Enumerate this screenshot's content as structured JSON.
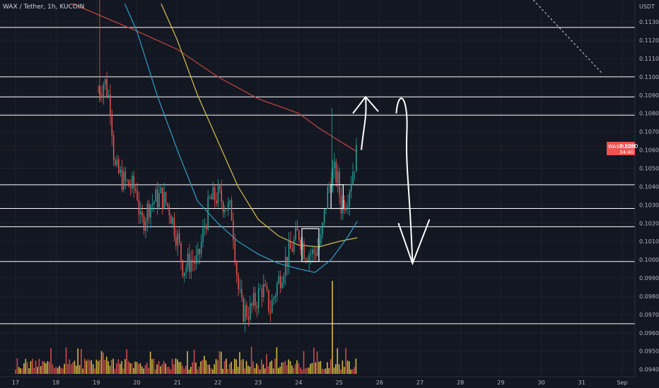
{
  "header": {
    "symbol_title": "WAX / Tether, 1h, KUCOIN"
  },
  "price_axis": {
    "unit": "USDT",
    "ticks": [
      "0.1130",
      "0.1120",
      "0.1110",
      "0.1100",
      "0.1090",
      "0.1080",
      "0.1070",
      "0.1060",
      "0.1050",
      "0.1040",
      "0.1030",
      "0.1020",
      "0.1010",
      "0.1000",
      "0.0990",
      "0.0980",
      "0.0970",
      "0.0960",
      "0.0950",
      "0.0940"
    ]
  },
  "time_axis": {
    "ticks": [
      "17",
      "18",
      "19",
      "20",
      "21",
      "22",
      "23",
      "24",
      "25",
      "26",
      "27",
      "28",
      "29",
      "30",
      "31",
      "Sep"
    ]
  },
  "badge": {
    "ticker": "WAXPUSDT",
    "price": "0.1060",
    "countdown": "34:40"
  },
  "colors": {
    "background": "#131722",
    "up": "#26a69a",
    "down": "#ef5350",
    "volume_up": "#f5d442",
    "volume_down": "#ef5350",
    "ma_red": "#c7463f",
    "ma_yellow": "#d8c24a",
    "ma_blue": "#2f9fc8",
    "drawing": "#ffffff",
    "axis_text": "#b2b5be"
  },
  "chart_data": {
    "type": "candlestick",
    "title": "WAX / Tether, 1h, KUCOIN",
    "ylabel": "USDT",
    "ylim": [
      0.0936,
      0.1142
    ],
    "x_dates": [
      "17",
      "18",
      "19",
      "20",
      "21",
      "22",
      "23",
      "24",
      "25",
      "26",
      "27",
      "28",
      "29",
      "30",
      "31",
      "Sep"
    ],
    "last_price": 0.106,
    "horizontal_levels": [
      0.1127,
      0.11,
      0.1089,
      0.1079,
      0.1041,
      0.1028,
      0.1018,
      0.0999,
      0.0965
    ],
    "boxes": [
      {
        "from_day": 24.08,
        "to_day": 24.5,
        "high": 0.1017,
        "low": 0.0999
      },
      {
        "from_day": 24.8,
        "to_day": 25.1,
        "high": 0.1041,
        "low": 0.1028
      }
    ],
    "arrows": [
      {
        "direction": "up",
        "from_price": 0.106,
        "to_price": 0.1089
      },
      {
        "direction": "down",
        "from_price": 0.1089,
        "to_price": 0.0998
      }
    ],
    "trend_line": {
      "from": [
        29.8,
        0.1142
      ],
      "to": [
        31.5,
        0.1102
      ],
      "style": "dashed"
    },
    "price_keypoints": [
      [
        19.05,
        0.1092
      ],
      [
        19.2,
        0.1098
      ],
      [
        19.35,
        0.1085
      ],
      [
        19.45,
        0.105
      ],
      [
        19.7,
        0.1042
      ],
      [
        20.0,
        0.1038
      ],
      [
        20.1,
        0.1018
      ],
      [
        20.3,
        0.103
      ],
      [
        20.6,
        0.1035
      ],
      [
        20.8,
        0.1028
      ],
      [
        21.0,
        0.1012
      ],
      [
        21.15,
        0.0995
      ],
      [
        21.35,
        0.1
      ],
      [
        21.5,
        0.0998
      ],
      [
        21.6,
        0.101
      ],
      [
        21.8,
        0.1032
      ],
      [
        22.0,
        0.1035
      ],
      [
        22.2,
        0.103
      ],
      [
        22.35,
        0.1025
      ],
      [
        22.5,
        0.0985
      ],
      [
        22.6,
        0.0972
      ],
      [
        22.8,
        0.0972
      ],
      [
        22.95,
        0.0978
      ],
      [
        23.1,
        0.0985
      ],
      [
        23.3,
        0.0973
      ],
      [
        23.45,
        0.0985
      ],
      [
        23.65,
        0.0998
      ],
      [
        23.8,
        0.1005
      ],
      [
        24.0,
        0.1015
      ],
      [
        24.15,
        0.1005
      ],
      [
        24.35,
        0.1003
      ],
      [
        24.55,
        0.101
      ],
      [
        24.7,
        0.1035
      ],
      [
        24.85,
        0.1048
      ],
      [
        24.95,
        0.1045
      ],
      [
        25.05,
        0.103
      ],
      [
        25.2,
        0.1035
      ],
      [
        25.35,
        0.105
      ],
      [
        25.45,
        0.106
      ]
    ],
    "moving_averages": [
      {
        "color": "red",
        "points": [
          [
            18.4,
            0.114
          ],
          [
            20.0,
            0.1125
          ],
          [
            21.0,
            0.1115
          ],
          [
            22.0,
            0.11
          ],
          [
            23.0,
            0.1088
          ],
          [
            24.0,
            0.108
          ],
          [
            24.5,
            0.1072
          ],
          [
            25.0,
            0.1065
          ],
          [
            25.45,
            0.1059
          ]
        ]
      },
      {
        "color": "yellow",
        "points": [
          [
            20.6,
            0.114
          ],
          [
            21.0,
            0.112
          ],
          [
            21.5,
            0.109
          ],
          [
            22.0,
            0.1065
          ],
          [
            22.5,
            0.104
          ],
          [
            23.0,
            0.1022
          ],
          [
            23.5,
            0.1013
          ],
          [
            24.0,
            0.1008
          ],
          [
            24.5,
            0.1007
          ],
          [
            25.0,
            0.101
          ],
          [
            25.45,
            0.1012
          ]
        ]
      },
      {
        "color": "blue",
        "points": [
          [
            19.7,
            0.114
          ],
          [
            20.0,
            0.1125
          ],
          [
            20.5,
            0.109
          ],
          [
            21.0,
            0.106
          ],
          [
            21.5,
            0.1032
          ],
          [
            22.0,
            0.102
          ],
          [
            22.5,
            0.101
          ],
          [
            23.0,
            0.1003
          ],
          [
            23.5,
            0.0998
          ],
          [
            24.0,
            0.0995
          ],
          [
            24.4,
            0.0993
          ],
          [
            24.8,
            0.1
          ],
          [
            25.2,
            0.1012
          ],
          [
            25.45,
            0.1021
          ]
        ]
      }
    ]
  }
}
